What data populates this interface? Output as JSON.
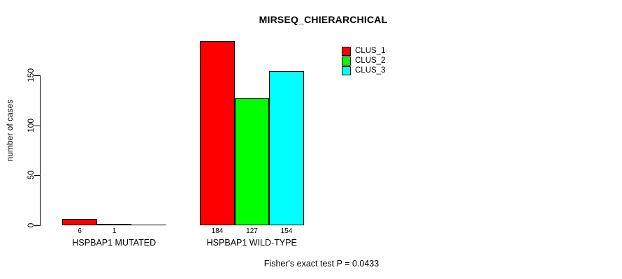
{
  "title": "MIRSEQ_CHIERARCHICAL",
  "footer": "Fisher's exact test P = 0.0433",
  "y_axis": {
    "label": "number of cases",
    "ticks": [
      0,
      50,
      100,
      150
    ]
  },
  "legend": [
    {
      "label": "CLUS_1",
      "color": "#FF0000"
    },
    {
      "label": "CLUS_2",
      "color": "#00FF00"
    },
    {
      "label": "CLUS_3",
      "color": "#00FFFF"
    }
  ],
  "chart_data": {
    "type": "bar",
    "title": "MIRSEQ_CHIERARCHICAL",
    "xlabel": "",
    "ylabel": "number of cases",
    "ylim": [
      0,
      150
    ],
    "grid": false,
    "legend_position": "top-right",
    "categories": [
      "HSPBAP1 MUTATED",
      "HSPBAP1 WILD-TYPE"
    ],
    "series": [
      {
        "name": "CLUS_1",
        "color": "#FF0000",
        "values": [
          6,
          184
        ]
      },
      {
        "name": "CLUS_2",
        "color": "#00FF00",
        "values": [
          1,
          127
        ]
      },
      {
        "name": "CLUS_3",
        "color": "#00FFFF",
        "values": [
          0,
          154
        ]
      }
    ],
    "bar_value_labels": [
      [
        "6",
        "1",
        ""
      ],
      [
        "184",
        "127",
        "154"
      ]
    ],
    "annotation": "Fisher's exact test P = 0.0433"
  }
}
